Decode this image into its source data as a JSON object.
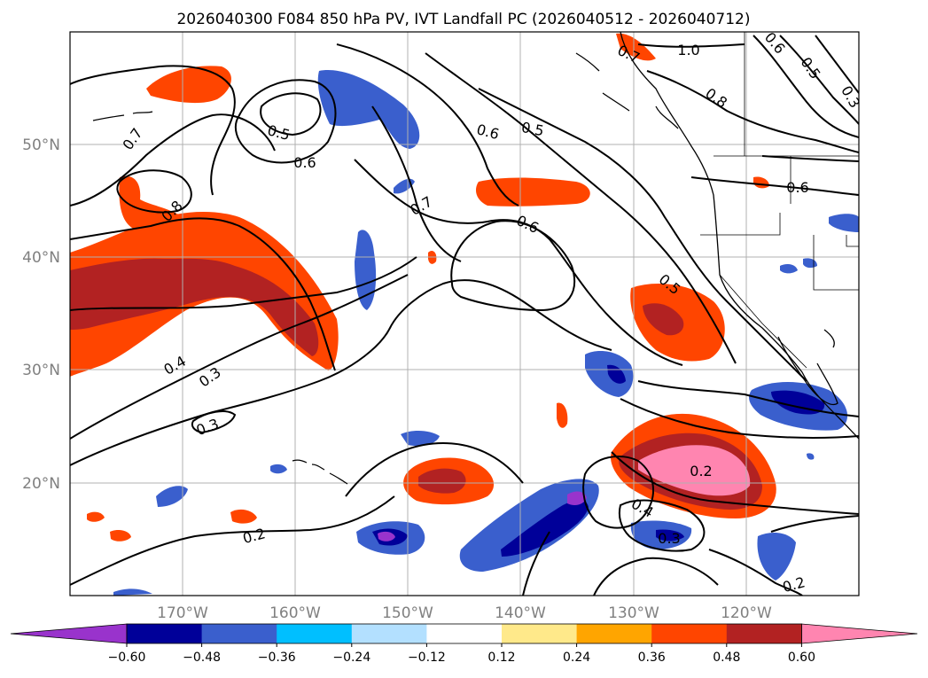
{
  "chart_data": {
    "type": "contour-map",
    "title": "2026040300 F084 850 hPa PV, IVT Landfall PC (2026040512 - 2026040712)",
    "lat_ticks": [
      "50°N",
      "40°N",
      "30°N",
      "20°N"
    ],
    "lat_values": [
      50,
      40,
      30,
      20
    ],
    "lon_ticks": [
      "170°W",
      "160°W",
      "150°W",
      "140°W",
      "130°W",
      "120°W"
    ],
    "lon_values": [
      -170,
      -160,
      -150,
      -140,
      -130,
      -120
    ],
    "extent": {
      "lon": [
        -180,
        -110
      ],
      "lat": [
        10,
        60
      ]
    },
    "colorbar": {
      "ticks": [
        "−0.60",
        "−0.48",
        "−0.36",
        "−0.24",
        "−0.12",
        "0.12",
        "0.24",
        "0.36",
        "0.48",
        "0.60"
      ],
      "levels": [
        -0.6,
        -0.48,
        -0.36,
        -0.24,
        -0.12,
        0.12,
        0.24,
        0.36,
        0.48,
        0.6
      ],
      "colors": [
        "#9933cc",
        "#000099",
        "#3a5fcd",
        "#00bfff",
        "#b3e0ff",
        "#ffffff",
        "#ffe98a",
        "#ffa500",
        "#ff4500",
        "#b22222",
        "#ff85b0"
      ]
    },
    "contour_labels": [
      "0.7",
      "0.8",
      "0.5",
      "0.6",
      "0.7",
      "0.6",
      "0.5",
      "0.6",
      "0.7",
      "1.0",
      "0.8",
      "0.6",
      "0.5",
      "0.3",
      "0.6",
      "0.5",
      "0.4",
      "0.3",
      "0.3",
      "0.2",
      "0.2",
      "0.4",
      "0.3",
      "0.2"
    ]
  }
}
